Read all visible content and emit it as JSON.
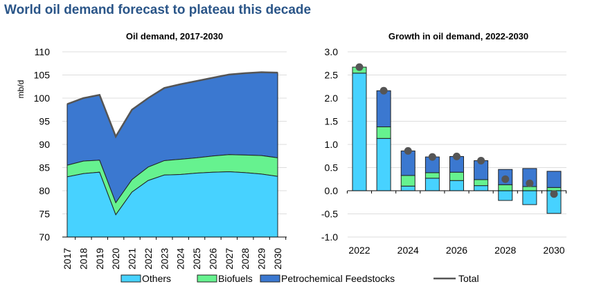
{
  "title": "World oil demand forecast to plateau this decade",
  "colors": {
    "others": "#47D2FF",
    "biofuels": "#66F28F",
    "petchem": "#3B78D0",
    "total": "#555555",
    "title": "#2A5588"
  },
  "legend": [
    "Others",
    "Biofuels",
    "Petrochemical Feedstocks",
    "Total"
  ],
  "chart_data": [
    {
      "type": "area",
      "title": "Oil demand, 2017-2030",
      "ylabel": "mb/d",
      "ylim": [
        70,
        110
      ],
      "yticks": [
        70,
        75,
        80,
        85,
        90,
        95,
        100,
        105,
        110
      ],
      "grid": true,
      "x": [
        "2017",
        "2018",
        "2019",
        "2020",
        "2021",
        "2022",
        "2023",
        "2024",
        "2025",
        "2026",
        "2027",
        "2028",
        "2029",
        "2030"
      ],
      "series": [
        {
          "name": "Others",
          "values": [
            83.0,
            83.7,
            84.0,
            74.8,
            79.7,
            82.2,
            83.4,
            83.5,
            83.8,
            84.0,
            84.1,
            83.9,
            83.6,
            83.1
          ]
        },
        {
          "name": "Biofuels",
          "values": [
            2.5,
            2.7,
            2.6,
            2.6,
            2.7,
            2.9,
            3.1,
            3.3,
            3.3,
            3.5,
            3.7,
            3.8,
            4.0,
            4.0
          ]
        },
        {
          "name": "Petrochemical Feedstocks",
          "values": [
            13.2,
            13.6,
            14.1,
            14.3,
            15.1,
            14.9,
            15.7,
            16.2,
            16.6,
            16.9,
            17.3,
            17.7,
            18.0,
            18.4
          ]
        },
        {
          "name": "Total",
          "values": [
            98.7,
            100.0,
            100.7,
            91.7,
            97.5,
            100.0,
            102.2,
            103.0,
            103.7,
            104.4,
            105.1,
            105.4,
            105.6,
            105.5
          ]
        }
      ]
    },
    {
      "type": "bar",
      "title": "Growth in oil demand, 2022-2030",
      "ylim": [
        -1.0,
        3.0
      ],
      "yticks": [
        "-1.0",
        "-0.5",
        "0.0",
        "0.5",
        "1.0",
        "1.5",
        "2.0",
        "2.5",
        "3.0"
      ],
      "grid": true,
      "x": [
        "2022",
        "2023",
        "2024",
        "2025",
        "2026",
        "2027",
        "2028",
        "2029",
        "2030"
      ],
      "xtick_labels": [
        "2022",
        "2024",
        "2026",
        "2028",
        "2030"
      ],
      "series": [
        {
          "name": "Others",
          "values": [
            2.54,
            1.13,
            0.1,
            0.27,
            0.22,
            0.11,
            -0.21,
            -0.3,
            -0.49
          ]
        },
        {
          "name": "Biofuels",
          "values": [
            0.13,
            0.25,
            0.23,
            0.12,
            0.18,
            0.13,
            0.13,
            0.09,
            0.07
          ]
        },
        {
          "name": "Petrochemical Feedstocks",
          "values": [
            0.0,
            0.78,
            0.53,
            0.34,
            0.34,
            0.41,
            0.33,
            0.39,
            0.35
          ]
        },
        {
          "name": "Total",
          "values": [
            2.67,
            2.16,
            0.86,
            0.73,
            0.74,
            0.65,
            0.25,
            0.16,
            -0.07
          ]
        }
      ]
    }
  ]
}
